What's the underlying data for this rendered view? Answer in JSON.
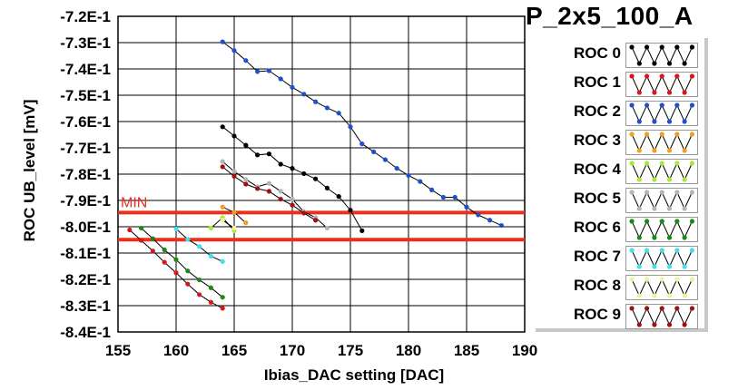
{
  "chart_data": {
    "type": "line",
    "title": "P_2x5_100_A",
    "xlabel": "Ibias_DAC setting [DAC]",
    "ylabel": "ROC UB_level [mV]",
    "xlim": [
      155,
      190
    ],
    "ylim": [
      -0.84,
      -0.72
    ],
    "x_ticks": [
      155,
      160,
      165,
      170,
      175,
      180,
      185,
      190
    ],
    "y_ticks": [
      -0.72,
      -0.73,
      -0.74,
      -0.75,
      -0.76,
      -0.77,
      -0.78,
      -0.79,
      -0.8,
      -0.81,
      -0.82,
      -0.83,
      -0.84
    ],
    "y_tick_labels": [
      "-7.2E-1",
      "-7.3E-1",
      "-7.4E-1",
      "-7.5E-1",
      "-7.6E-1",
      "-7.7E-1",
      "-7.8E-1",
      "-7.9E-1",
      "-8.0E-1",
      "-8.1E-1",
      "-8.2E-1",
      "-8.3E-1",
      "-8.4E-1"
    ],
    "grid": true,
    "limit_lines": [
      {
        "value": -0.7946,
        "color": "#e8301c",
        "label": "MIN"
      },
      {
        "value": -0.8049,
        "color": "#e8301c",
        "label": ""
      }
    ],
    "series": [
      {
        "name": "ROC 0",
        "color": "#000000",
        "x": [
          164,
          165,
          166,
          167,
          168,
          169,
          170,
          171,
          172,
          173,
          174,
          175,
          176
        ],
        "y": [
          -0.762,
          -0.7655,
          -0.769,
          -0.7727,
          -0.7723,
          -0.7762,
          -0.7778,
          -0.7798,
          -0.7818,
          -0.7853,
          -0.7885,
          -0.7937,
          -0.8015
        ]
      },
      {
        "name": "ROC 1",
        "color": "#d81818",
        "x": [
          156,
          157,
          158,
          159,
          160,
          161,
          162,
          163,
          164
        ],
        "y": [
          -0.8012,
          -0.8052,
          -0.8092,
          -0.8135,
          -0.8175,
          -0.8218,
          -0.8258,
          -0.8287,
          -0.831
        ]
      },
      {
        "name": "ROC 2",
        "color": "#1f4fcf",
        "x": [
          164,
          165,
          166,
          167,
          168,
          169,
          170,
          171,
          172,
          173,
          174,
          175,
          176,
          177,
          178,
          179,
          180,
          181,
          182,
          183,
          184,
          185,
          186,
          187,
          188
        ],
        "y": [
          -0.7297,
          -0.733,
          -0.7368,
          -0.741,
          -0.7407,
          -0.7438,
          -0.747,
          -0.7496,
          -0.7525,
          -0.7548,
          -0.7568,
          -0.762,
          -0.7685,
          -0.7715,
          -0.7745,
          -0.7778,
          -0.7805,
          -0.7828,
          -0.786,
          -0.7888,
          -0.7888,
          -0.7925,
          -0.7955,
          -0.7975,
          -0.7995
        ]
      },
      {
        "name": "ROC 3",
        "color": "#f0a020",
        "x": [
          164,
          165,
          166
        ],
        "y": [
          -0.7925,
          -0.7945,
          -0.7985
        ]
      },
      {
        "name": "ROC 4",
        "color": "#a8e838",
        "x": [
          163,
          164,
          165
        ],
        "y": [
          -0.8005,
          -0.7965,
          -0.8015
        ]
      },
      {
        "name": "ROC 5",
        "color": "#b4b4b4",
        "x": [
          164,
          165,
          166,
          167,
          168,
          169,
          170,
          171,
          172,
          173
        ],
        "y": [
          -0.7752,
          -0.779,
          -0.782,
          -0.7848,
          -0.7835,
          -0.7865,
          -0.7895,
          -0.7943,
          -0.7965,
          -0.8005
        ]
      },
      {
        "name": "ROC 6",
        "color": "#158a15",
        "x": [
          157,
          158,
          159,
          160,
          161,
          162,
          163,
          164
        ],
        "y": [
          -0.8005,
          -0.8045,
          -0.8088,
          -0.8125,
          -0.8168,
          -0.8202,
          -0.8232,
          -0.8268
        ]
      },
      {
        "name": "ROC 7",
        "color": "#40e0f0",
        "x": [
          160,
          161,
          162,
          163,
          164
        ],
        "y": [
          -0.8008,
          -0.8048,
          -0.8075,
          -0.8112,
          -0.8132
        ]
      },
      {
        "name": "ROC 8",
        "color": "#f0f0a0",
        "x": [
          164,
          165
        ],
        "y": [
          -0.7975,
          -0.8005
        ]
      },
      {
        "name": "ROC 9",
        "color": "#a01010",
        "x": [
          164,
          165,
          166,
          167,
          168,
          169,
          170,
          171,
          172
        ],
        "y": [
          -0.7772,
          -0.7808,
          -0.7838,
          -0.7855,
          -0.7865,
          -0.7895,
          -0.7918,
          -0.7948,
          -0.7975
        ]
      }
    ]
  },
  "legend": {
    "title": "P_2x5_100_A",
    "items": [
      {
        "label": "ROC 0",
        "color": "#000000"
      },
      {
        "label": "ROC 1",
        "color": "#d81818"
      },
      {
        "label": "ROC 2",
        "color": "#1f4fcf"
      },
      {
        "label": "ROC 3",
        "color": "#f0a020"
      },
      {
        "label": "ROC 4",
        "color": "#a8e838"
      },
      {
        "label": "ROC 5",
        "color": "#b4b4b4"
      },
      {
        "label": "ROC 6",
        "color": "#158a15"
      },
      {
        "label": "ROC 7",
        "color": "#40e0f0"
      },
      {
        "label": "ROC 8",
        "color": "#f0f0a0"
      },
      {
        "label": "ROC 9",
        "color": "#a01010"
      }
    ]
  }
}
